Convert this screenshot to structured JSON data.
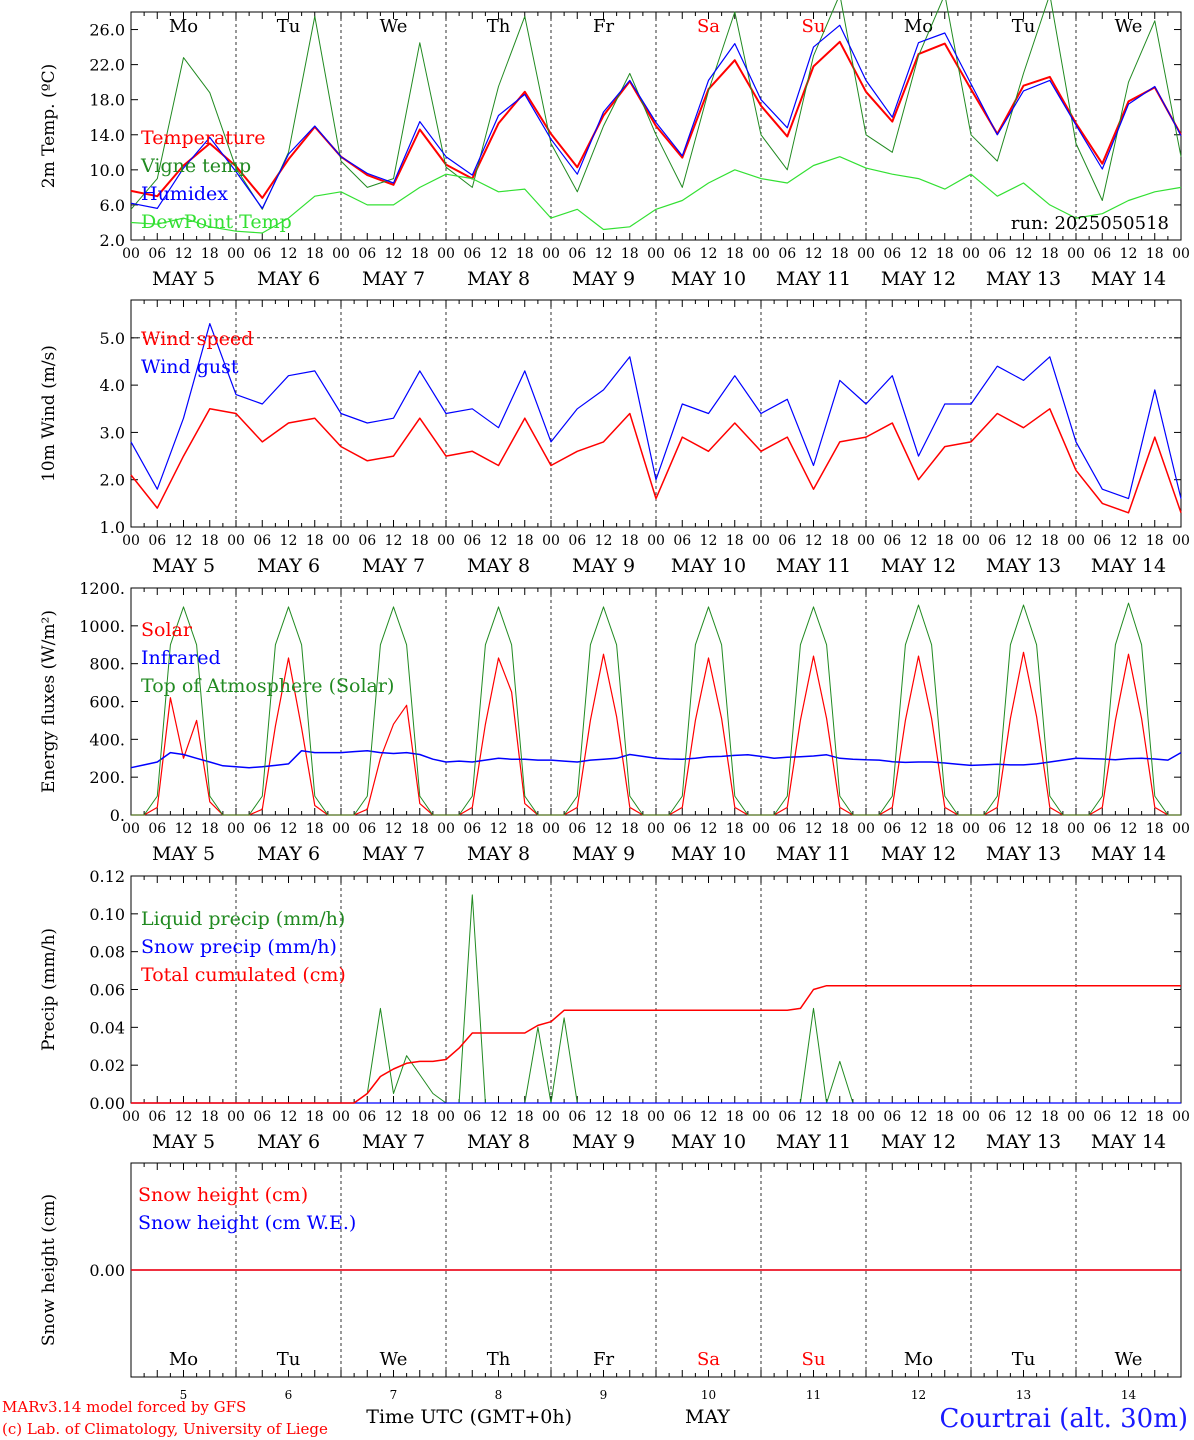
{
  "x_axis": {
    "hour_labels": [
      "00",
      "06",
      "12",
      "18"
    ],
    "final_hour_label": "00",
    "date_labels": [
      "MAY  5",
      "MAY  6",
      "MAY  7",
      "MAY  8",
      "MAY  9",
      "MAY 10",
      "MAY 11",
      "MAY 12",
      "MAY 13",
      "MAY 14"
    ],
    "weekdays": [
      "Mo",
      "Tu",
      "We",
      "Th",
      "Fr",
      "Sa",
      "Su",
      "Mo",
      "Tu",
      "We"
    ],
    "weekend_indices": [
      5,
      6
    ],
    "day_numbers": [
      "5",
      "6",
      "7",
      "8",
      "9",
      "10",
      "11",
      "12",
      "13",
      "14"
    ],
    "title": "Time UTC (GMT+0h)",
    "month": "MAY"
  },
  "footer": {
    "model": "MARv3.14 model forced by GFS",
    "credit": "(c) Lab. of Climatology, University of Liege",
    "station": "Courtrai (alt. 30m)"
  },
  "colors": {
    "red": "#ff0000",
    "green": "#218a21",
    "blue": "#0000ff",
    "lightgreen": "#33e033",
    "axis": "#000000",
    "station": "#1a1aff"
  },
  "chart_data": [
    {
      "id": "temp",
      "type": "line",
      "ylabel": "2m Temp. (ºC)",
      "ylim": [
        2,
        28
      ],
      "yticks": [
        2,
        6,
        10,
        14,
        18,
        22,
        26
      ],
      "ytick_labels": [
        "2.0",
        "6.0",
        "10.0",
        "14.0",
        "18.0",
        "22.0",
        "26.0"
      ],
      "dashed_y": [],
      "run_label": "run: 2025050518",
      "show_weekdays_top": true,
      "x_hours": [
        0,
        6,
        12,
        18,
        24,
        30,
        36,
        42,
        48,
        54,
        60,
        66,
        72,
        78,
        84,
        90,
        96,
        102,
        108,
        114,
        120,
        126,
        132,
        138,
        144,
        150,
        156,
        162,
        168,
        174,
        180,
        186,
        192,
        198,
        204,
        210,
        216,
        222,
        228,
        234,
        240
      ],
      "series": [
        {
          "name": "Temperature",
          "color": "red",
          "width": 2.0,
          "values": [
            7.6,
            7.0,
            10.5,
            13.0,
            10.4,
            6.8,
            11.2,
            14.9,
            11.5,
            9.4,
            8.3,
            14.6,
            10.6,
            9.0,
            15.3,
            18.9,
            14.1,
            10.3,
            16.2,
            20.1,
            15.0,
            11.4,
            19.2,
            22.5,
            17.3,
            13.8,
            21.8,
            24.6,
            18.9,
            15.5,
            23.2,
            24.4,
            19.2,
            14.1,
            19.6,
            20.6,
            15.3,
            10.7,
            17.8,
            19.4,
            14.0
          ]
        },
        {
          "name": "Vigne temp",
          "color": "green",
          "width": 1.0,
          "values": [
            5.5,
            9.0,
            22.8,
            18.8,
            10.2,
            5.5,
            12.0,
            27.5,
            11.0,
            8.0,
            9.0,
            24.5,
            10.3,
            8.0,
            19.5,
            27.5,
            13.0,
            7.5,
            15.0,
            21.0,
            14.0,
            8.0,
            19.0,
            28.0,
            14.0,
            10.0,
            23.0,
            30.0,
            14.0,
            12.0,
            23.0,
            30.0,
            14.0,
            11.0,
            21.0,
            30.0,
            13.0,
            6.5,
            20.0,
            27.0,
            11.5
          ]
        },
        {
          "name": "Humidex",
          "color": "blue",
          "width": 1.2,
          "values": [
            6.2,
            5.6,
            10.2,
            13.7,
            9.8,
            5.6,
            11.8,
            15.0,
            11.5,
            9.6,
            8.5,
            15.5,
            11.5,
            9.4,
            16.2,
            18.6,
            13.5,
            9.5,
            16.6,
            20.2,
            15.4,
            11.6,
            20.2,
            24.4,
            18.0,
            14.8,
            24.0,
            26.5,
            20.2,
            16.0,
            24.5,
            25.6,
            19.8,
            14.0,
            19.0,
            20.2,
            15.1,
            10.1,
            17.5,
            19.5,
            13.9
          ]
        },
        {
          "name": "DewPoint Temp",
          "color": "lightgreen",
          "width": 1.2,
          "values": [
            4.0,
            3.8,
            4.5,
            3.5,
            3.0,
            2.8,
            4.5,
            7.0,
            7.5,
            6.0,
            6.0,
            8.0,
            9.5,
            9.0,
            7.5,
            7.8,
            4.5,
            5.5,
            3.2,
            3.5,
            5.5,
            6.5,
            8.5,
            10.0,
            9.0,
            8.5,
            10.5,
            11.5,
            10.2,
            9.5,
            9.0,
            7.8,
            9.5,
            7.0,
            8.5,
            6.0,
            4.5,
            5.0,
            6.5,
            7.5,
            8.0
          ]
        }
      ]
    },
    {
      "id": "wind",
      "type": "line",
      "ylabel": "10m Wind (m/s)",
      "ylim": [
        1,
        5.8
      ],
      "yticks": [
        1,
        2,
        3,
        4,
        5
      ],
      "ytick_labels": [
        "1.0",
        "2.0",
        "3.0",
        "4.0",
        "5.0"
      ],
      "dashed_y": [
        5.0
      ],
      "show_weekdays_top": false,
      "x_hours": [
        0,
        6,
        12,
        18,
        24,
        30,
        36,
        42,
        48,
        54,
        60,
        66,
        72,
        78,
        84,
        90,
        96,
        102,
        108,
        114,
        120,
        126,
        132,
        138,
        144,
        150,
        156,
        162,
        168,
        174,
        180,
        186,
        192,
        198,
        204,
        210,
        216,
        222,
        228,
        234,
        240
      ],
      "series": [
        {
          "name": "Wind speed",
          "color": "red",
          "width": 1.5,
          "values": [
            2.1,
            1.4,
            2.5,
            3.5,
            3.4,
            2.8,
            3.2,
            3.3,
            2.7,
            2.4,
            2.5,
            3.3,
            2.5,
            2.6,
            2.3,
            3.3,
            2.3,
            2.6,
            2.8,
            3.4,
            1.6,
            2.9,
            2.6,
            3.2,
            2.6,
            2.9,
            1.8,
            2.8,
            2.9,
            3.2,
            2.0,
            2.7,
            2.8,
            3.4,
            3.1,
            3.5,
            2.2,
            1.5,
            1.3,
            2.9,
            1.3
          ]
        },
        {
          "name": "Wind gust",
          "color": "blue",
          "width": 1.2,
          "values": [
            2.8,
            1.8,
            3.3,
            5.3,
            3.8,
            3.6,
            4.2,
            4.3,
            3.4,
            3.2,
            3.3,
            4.3,
            3.4,
            3.5,
            3.1,
            4.3,
            2.8,
            3.5,
            3.9,
            4.6,
            2.0,
            3.6,
            3.4,
            4.2,
            3.4,
            3.7,
            2.3,
            4.1,
            3.6,
            4.2,
            2.5,
            3.6,
            3.6,
            4.4,
            4.1,
            4.6,
            2.8,
            1.8,
            1.6,
            3.9,
            1.6
          ]
        }
      ]
    },
    {
      "id": "energy",
      "type": "line",
      "ylabel": "Energy fluxes (W/m²)",
      "ylim": [
        0,
        1200
      ],
      "yticks": [
        0,
        200,
        400,
        600,
        800,
        1000,
        1200
      ],
      "ytick_labels": [
        "0.",
        "200.",
        "400.",
        "600.",
        "800.",
        "1000.",
        "1200."
      ],
      "dashed_y": [],
      "show_weekdays_top": false,
      "x_hours": [
        0,
        3,
        6,
        9,
        12,
        15,
        18,
        21,
        24,
        27,
        30,
        33,
        36,
        39,
        42,
        45,
        48,
        51,
        54,
        57,
        60,
        63,
        66,
        69,
        72,
        75,
        78,
        81,
        84,
        87,
        90,
        93,
        96,
        99,
        102,
        105,
        108,
        111,
        114,
        117,
        120,
        123,
        126,
        129,
        132,
        135,
        138,
        141,
        144,
        147,
        150,
        153,
        156,
        159,
        162,
        165,
        168,
        171,
        174,
        177,
        180,
        183,
        186,
        189,
        192,
        195,
        198,
        201,
        204,
        207,
        210,
        213,
        216,
        219,
        222,
        225,
        228,
        231,
        234,
        237,
        240
      ],
      "series": [
        {
          "name": "Solar",
          "color": "red",
          "width": 1.2,
          "values": [
            0,
            0,
            40,
            620,
            300,
            500,
            70,
            0,
            0,
            0,
            30,
            470,
            830,
            460,
            50,
            0,
            0,
            0,
            30,
            300,
            480,
            580,
            60,
            0,
            0,
            0,
            40,
            480,
            830,
            650,
            60,
            0,
            0,
            0,
            40,
            500,
            850,
            520,
            40,
            0,
            0,
            0,
            40,
            500,
            830,
            510,
            40,
            0,
            0,
            0,
            40,
            500,
            840,
            510,
            40,
            0,
            0,
            0,
            40,
            500,
            840,
            510,
            40,
            0,
            0,
            0,
            40,
            510,
            860,
            520,
            40,
            0,
            0,
            0,
            40,
            500,
            850,
            510,
            40,
            0,
            0
          ]
        },
        {
          "name": "Infrared",
          "color": "blue",
          "width": 1.5,
          "values": [
            250,
            265,
            280,
            330,
            320,
            300,
            280,
            260,
            255,
            250,
            255,
            262,
            270,
            340,
            330,
            330,
            330,
            335,
            340,
            330,
            325,
            330,
            320,
            295,
            280,
            285,
            280,
            290,
            300,
            295,
            295,
            290,
            290,
            285,
            280,
            290,
            295,
            300,
            320,
            310,
            300,
            296,
            295,
            300,
            308,
            310,
            315,
            318,
            310,
            300,
            305,
            308,
            312,
            318,
            300,
            295,
            292,
            290,
            282,
            278,
            280,
            280,
            275,
            268,
            262,
            265,
            268,
            265,
            265,
            270,
            280,
            290,
            300,
            298,
            296,
            292,
            298,
            300,
            296,
            290,
            330
          ]
        },
        {
          "name": "Top of Atmosphere (Solar)",
          "color": "green",
          "width": 1.0,
          "values": [
            0,
            0,
            100,
            900,
            1100,
            900,
            100,
            0,
            0,
            0,
            100,
            900,
            1100,
            900,
            100,
            0,
            0,
            0,
            100,
            900,
            1100,
            900,
            100,
            0,
            0,
            0,
            100,
            900,
            1100,
            900,
            100,
            0,
            0,
            0,
            100,
            900,
            1100,
            900,
            100,
            0,
            0,
            0,
            100,
            900,
            1100,
            900,
            100,
            0,
            0,
            0,
            100,
            900,
            1100,
            900,
            100,
            0,
            0,
            0,
            100,
            900,
            1110,
            900,
            100,
            0,
            0,
            0,
            100,
            900,
            1110,
            900,
            100,
            0,
            0,
            0,
            100,
            900,
            1120,
            900,
            100,
            0,
            0
          ]
        }
      ]
    },
    {
      "id": "precip",
      "type": "line",
      "ylabel": "Precip (mm/h)",
      "ylim": [
        0,
        0.12
      ],
      "yticks": [
        0,
        0.02,
        0.04,
        0.06,
        0.08,
        0.1,
        0.12
      ],
      "ytick_labels": [
        "0.00",
        "0.02",
        "0.04",
        "0.06",
        "0.08",
        "0.10",
        "0.12"
      ],
      "dashed_y": [],
      "show_weekdays_top": false,
      "x_hours": [
        0,
        6,
        12,
        18,
        24,
        30,
        36,
        42,
        48,
        51,
        54,
        57,
        60,
        63,
        66,
        69,
        72,
        75,
        78,
        81,
        84,
        87,
        90,
        93,
        96,
        99,
        102,
        105,
        108,
        114,
        120,
        126,
        132,
        138,
        144,
        150,
        153,
        156,
        159,
        162,
        165,
        168,
        174,
        180,
        186,
        192,
        198,
        204,
        210,
        216,
        222,
        228,
        234,
        240
      ],
      "series": [
        {
          "name": "Liquid precip (mm/h)",
          "color": "green",
          "width": 1.0,
          "values": [
            0,
            0,
            0,
            0,
            0,
            0,
            0,
            0,
            0,
            0,
            0.005,
            0.05,
            0.005,
            0.025,
            0.015,
            0.005,
            0,
            0,
            0.11,
            0,
            0,
            0,
            0,
            0.04,
            0,
            0.045,
            0,
            0,
            0,
            0,
            0,
            0,
            0,
            0,
            0,
            0,
            0,
            0.05,
            0,
            0.022,
            0,
            0,
            0,
            0,
            0,
            0,
            0,
            0,
            0,
            0,
            0,
            0,
            0,
            0
          ]
        },
        {
          "name": "Snow precip (mm/h)",
          "color": "blue",
          "width": 1.2,
          "values": [
            0,
            0,
            0,
            0,
            0,
            0,
            0,
            0,
            0,
            0,
            0,
            0,
            0,
            0,
            0,
            0,
            0,
            0,
            0,
            0,
            0,
            0,
            0,
            0,
            0,
            0,
            0,
            0,
            0,
            0,
            0,
            0,
            0,
            0,
            0,
            0,
            0,
            0,
            0,
            0,
            0,
            0,
            0,
            0,
            0,
            0,
            0,
            0,
            0,
            0,
            0,
            0,
            0,
            0
          ]
        },
        {
          "name": "Total cumulated (cm)",
          "color": "red",
          "width": 1.5,
          "values": [
            0,
            0,
            0,
            0,
            0,
            0,
            0,
            0,
            0,
            0,
            0.005,
            0.014,
            0.018,
            0.021,
            0.022,
            0.022,
            0.023,
            0.029,
            0.037,
            0.037,
            0.037,
            0.037,
            0.037,
            0.041,
            0.043,
            0.049,
            0.049,
            0.049,
            0.049,
            0.049,
            0.049,
            0.049,
            0.049,
            0.049,
            0.049,
            0.049,
            0.05,
            0.06,
            0.062,
            0.062,
            0.062,
            0.062,
            0.062,
            0.062,
            0.062,
            0.062,
            0.062,
            0.062,
            0.062,
            0.062,
            0.062,
            0.062,
            0.062,
            0.062
          ]
        }
      ]
    },
    {
      "id": "snow",
      "type": "line",
      "ylabel": "Snow height (cm)",
      "ylim": [
        -1,
        1
      ],
      "yticks": [
        0
      ],
      "ytick_labels": [
        "0.00"
      ],
      "dashed_y": [],
      "show_weekdays_top": false,
      "x_hours": [
        0,
        240
      ],
      "series": [
        {
          "name": "Snow height (cm W.E.)",
          "color": "blue",
          "width": 1.2,
          "values": [
            0,
            0
          ]
        },
        {
          "name": "Snow height (cm)",
          "color": "red",
          "width": 1.5,
          "values": [
            0,
            0
          ]
        }
      ],
      "legend_order": [
        1,
        0
      ]
    }
  ]
}
